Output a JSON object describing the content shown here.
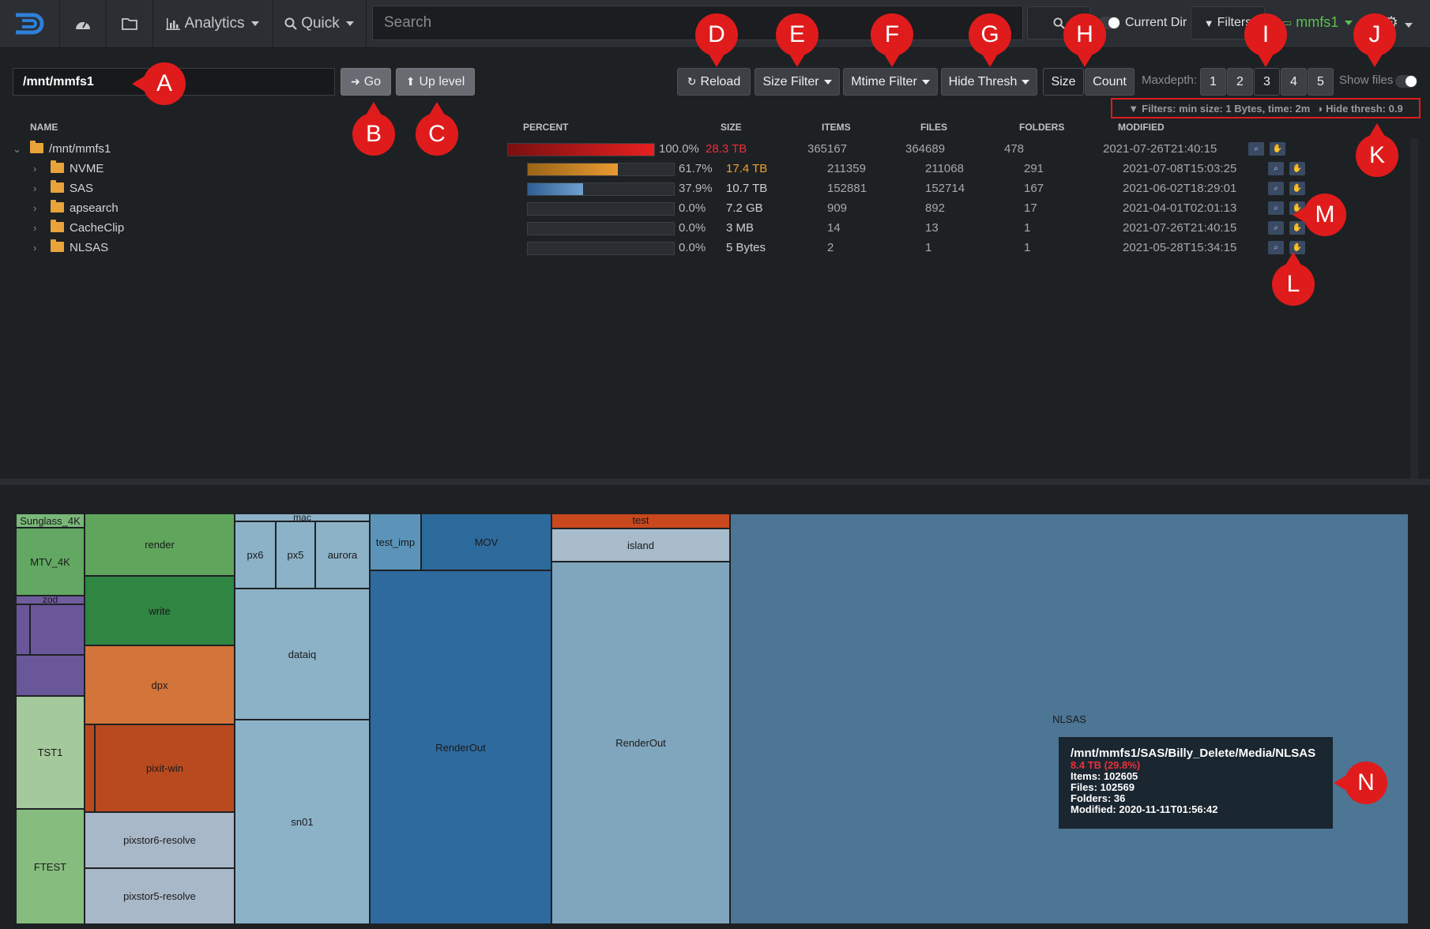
{
  "navbar": {
    "analytics_label": "Analytics",
    "quick_label": "Quick",
    "search_placeholder": "Search",
    "current_dir_label": "Current Dir",
    "filters_label": "Filters",
    "index_label": "mmfs1"
  },
  "toolbar": {
    "path_value": "/mnt/mmfs1",
    "go_label": "Go",
    "up_level_label": "Up level",
    "reload_label": "Reload",
    "size_filter_label": "Size Filter",
    "mtime_filter_label": "Mtime Filter",
    "hide_thresh_label": "Hide Thresh",
    "size_label": "Size",
    "count_label": "Count",
    "maxdepth_label": "Maxdepth:",
    "maxdepth_options": [
      "1",
      "2",
      "3",
      "4",
      "5"
    ],
    "show_files_label": "Show files",
    "filters_info": "Filters: min size: 1 Bytes, time: 2m",
    "hide_thresh_info": "Hide thresh: 0.9"
  },
  "table": {
    "headers": {
      "name": "NAME",
      "percent": "PERCENT",
      "size": "SIZE",
      "items": "ITEMS",
      "files": "FILES",
      "folders": "FOLDERS",
      "modified": "MODIFIED"
    },
    "rows": [
      {
        "name": "/mnt/mmfs1",
        "percent": "100.0%",
        "percent_value": 1.0,
        "size": "28.3 TB",
        "items": "365167",
        "files": "364689",
        "folders": "478",
        "modified": "2021-07-26T21:40:15"
      },
      {
        "name": "NVME",
        "percent": "61.7%",
        "percent_value": 0.617,
        "size": "17.4 TB",
        "items": "211359",
        "files": "211068",
        "folders": "291",
        "modified": "2021-07-08T15:03:25"
      },
      {
        "name": "SAS",
        "percent": "37.9%",
        "percent_value": 0.379,
        "size": "10.7 TB",
        "items": "152881",
        "files": "152714",
        "folders": "167",
        "modified": "2021-06-02T18:29:01"
      },
      {
        "name": "apsearch",
        "percent": "0.0%",
        "percent_value": 0.0,
        "size": "7.2 GB",
        "items": "909",
        "files": "892",
        "folders": "17",
        "modified": "2021-04-01T02:01:13"
      },
      {
        "name": "CacheClip",
        "percent": "0.0%",
        "percent_value": 0.0,
        "size": "3 MB",
        "items": "14",
        "files": "13",
        "folders": "1",
        "modified": "2021-07-26T21:40:15"
      },
      {
        "name": "NLSAS",
        "percent": "0.0%",
        "percent_value": 0.0,
        "size": "5 Bytes",
        "items": "2",
        "files": "1",
        "folders": "1",
        "modified": "2021-05-28T15:34:15"
      }
    ]
  },
  "treemap": {
    "labels": {
      "sunglass": "Sunglass_4K",
      "mtv": "MTV_4K",
      "zod": "zod",
      "tst1": "TST1",
      "ftest": "FTEST",
      "render": "render",
      "write": "write",
      "dpx": "dpx",
      "pixit": "pixit-win",
      "pixstor6": "pixstor6-resolve",
      "pixstor5": "pixstor5-resolve",
      "mac": "mac",
      "px6": "px6",
      "px5": "px5",
      "aurora": "aurora",
      "dataiq": "dataiq",
      "sn01": "sn01",
      "test_imp": "test_imp",
      "mov": "MOV",
      "renderout1": "RenderOut",
      "test": "test",
      "island": "island",
      "renderout2": "RenderOut",
      "nlsas": "NLSAS"
    },
    "tooltip": {
      "path": "/mnt/mmfs1/SAS/Billy_Delete/Media/NLSAS",
      "size": "8.4 TB (29.8%)",
      "items": "Items: 102605",
      "files": "Files: 102569",
      "folders": "Folders: 36",
      "modified": "Modified: 2020-11-11T01:56:42"
    }
  },
  "markers": [
    "A",
    "B",
    "C",
    "D",
    "E",
    "F",
    "G",
    "H",
    "I",
    "J",
    "K",
    "L",
    "M",
    "N"
  ],
  "colors": {
    "accent_red": "#e01b1b",
    "size_red": "#e8303a",
    "size_orange": "#f0a030",
    "index_green": "#5fbf4f"
  }
}
